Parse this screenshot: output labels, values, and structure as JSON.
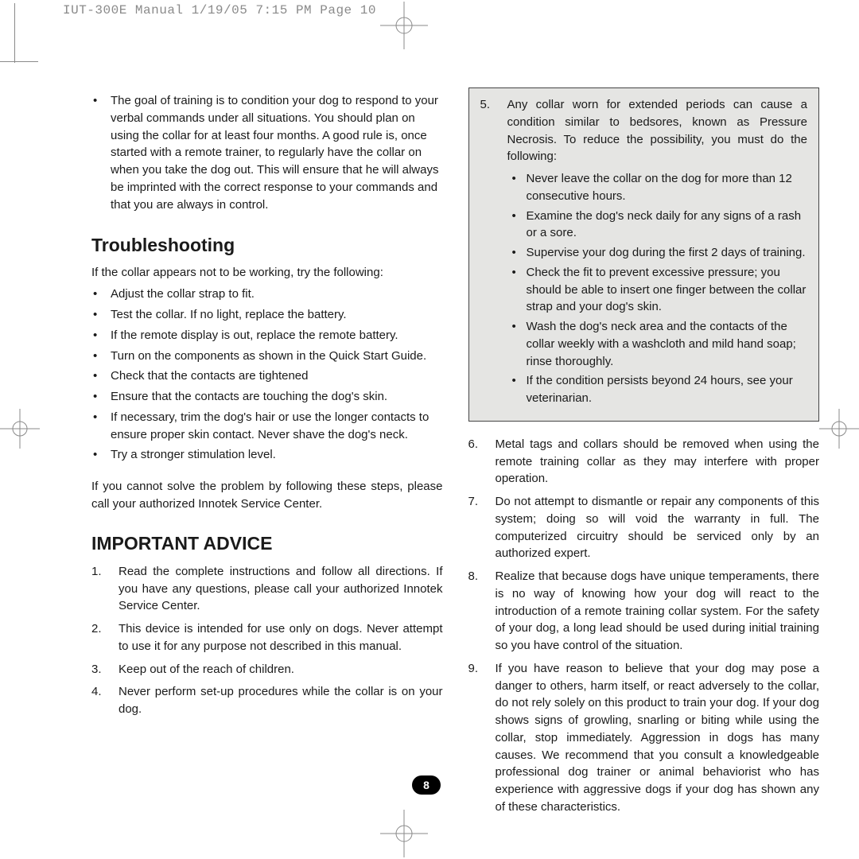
{
  "slug": "IUT-300E Manual  1/19/05  7:15 PM  Page 10",
  "left": {
    "intro_bullet": "The goal of training is to condition your dog to respond to your verbal commands under all situations. You should plan on using the collar for at least four months. A good rule is, once started with a remote trainer, to regularly have the collar on when you take the dog out. This will ensure that he will always be imprinted with the correct response to your commands and that you are always in control.",
    "trouble_heading": "Troubleshooting",
    "trouble_intro": "If the collar appears not to be working, try the following:",
    "trouble_items": [
      "Adjust the collar strap to fit.",
      "Test the collar. If no light, replace the battery.",
      "If the remote display is out, replace the remote battery.",
      "Turn on the components as shown in the Quick Start Guide.",
      "Check that the contacts are tightened",
      "Ensure that the contacts are touching the dog's skin.",
      "If necessary, trim the dog's hair or use the longer contacts to ensure proper skin contact. Never shave the dog's neck.",
      "Try a stronger stimulation level."
    ],
    "trouble_out": "If you cannot solve the problem by following these steps, please call your authorized Innotek Service Center.",
    "advice_heading": "IMPORTANT ADVICE",
    "advice_items": [
      {
        "n": "1.",
        "t": "Read the complete instructions and follow all directions. If you have any questions, please call your authorized Innotek Service Center."
      },
      {
        "n": "2.",
        "t": "This device is intended for use only on dogs. Never attempt to use it for any purpose not described in this manual."
      },
      {
        "n": "3.",
        "t": "Keep out of the reach of children."
      },
      {
        "n": "4.",
        "t": "Never perform set-up procedures while the collar is on your dog."
      }
    ]
  },
  "right": {
    "box_num": "5.",
    "box_lead": "Any collar worn for extended periods can cause a condition similar to bedsores, known as Pressure Necrosis. To reduce the possibility, you must do the following:",
    "box_items": [
      "Never leave the collar on the dog for more than 12 consecutive hours.",
      "Examine the dog's neck daily for any signs of a rash or a sore.",
      "Supervise your dog during the first 2 days of training.",
      "Check the fit to prevent excessive pressure; you should be able to insert one finger between the collar strap and your dog's skin.",
      "Wash the dog's neck area and the contacts of the collar weekly with a washcloth and mild hand soap; rinse thoroughly.",
      "If the condition persists beyond 24 hours, see your veterinarian."
    ],
    "cont_items": [
      {
        "n": "6.",
        "t": "Metal tags and collars should be removed when using the remote training collar as they may interfere with proper operation."
      },
      {
        "n": "7.",
        "t": "Do not attempt to dismantle or repair any components of this system; doing so will void the warranty in full. The computerized circuitry should be serviced only by an authorized expert."
      },
      {
        "n": "8.",
        "t": "Realize that because dogs have unique temperaments, there is no way of knowing how your dog will react to the introduction of a remote training collar system. For the safety of your dog, a long lead should be used during initial training so you have control of the situation."
      },
      {
        "n": "9.",
        "t": "If you have reason to believe that your dog may pose a danger to others, harm itself, or react adversely to the collar, do not rely solely on this product to train your dog. If your dog shows signs of growling, snarling or biting while using the collar, stop immediately. Aggression in dogs has many causes. We recommend that you consult a knowledgeable professional dog trainer or animal behaviorist who has experience with aggressive dogs if your dog has shown any of these characteristics."
      }
    ]
  },
  "page_number": "8",
  "reg_color": "#8a8a8a"
}
